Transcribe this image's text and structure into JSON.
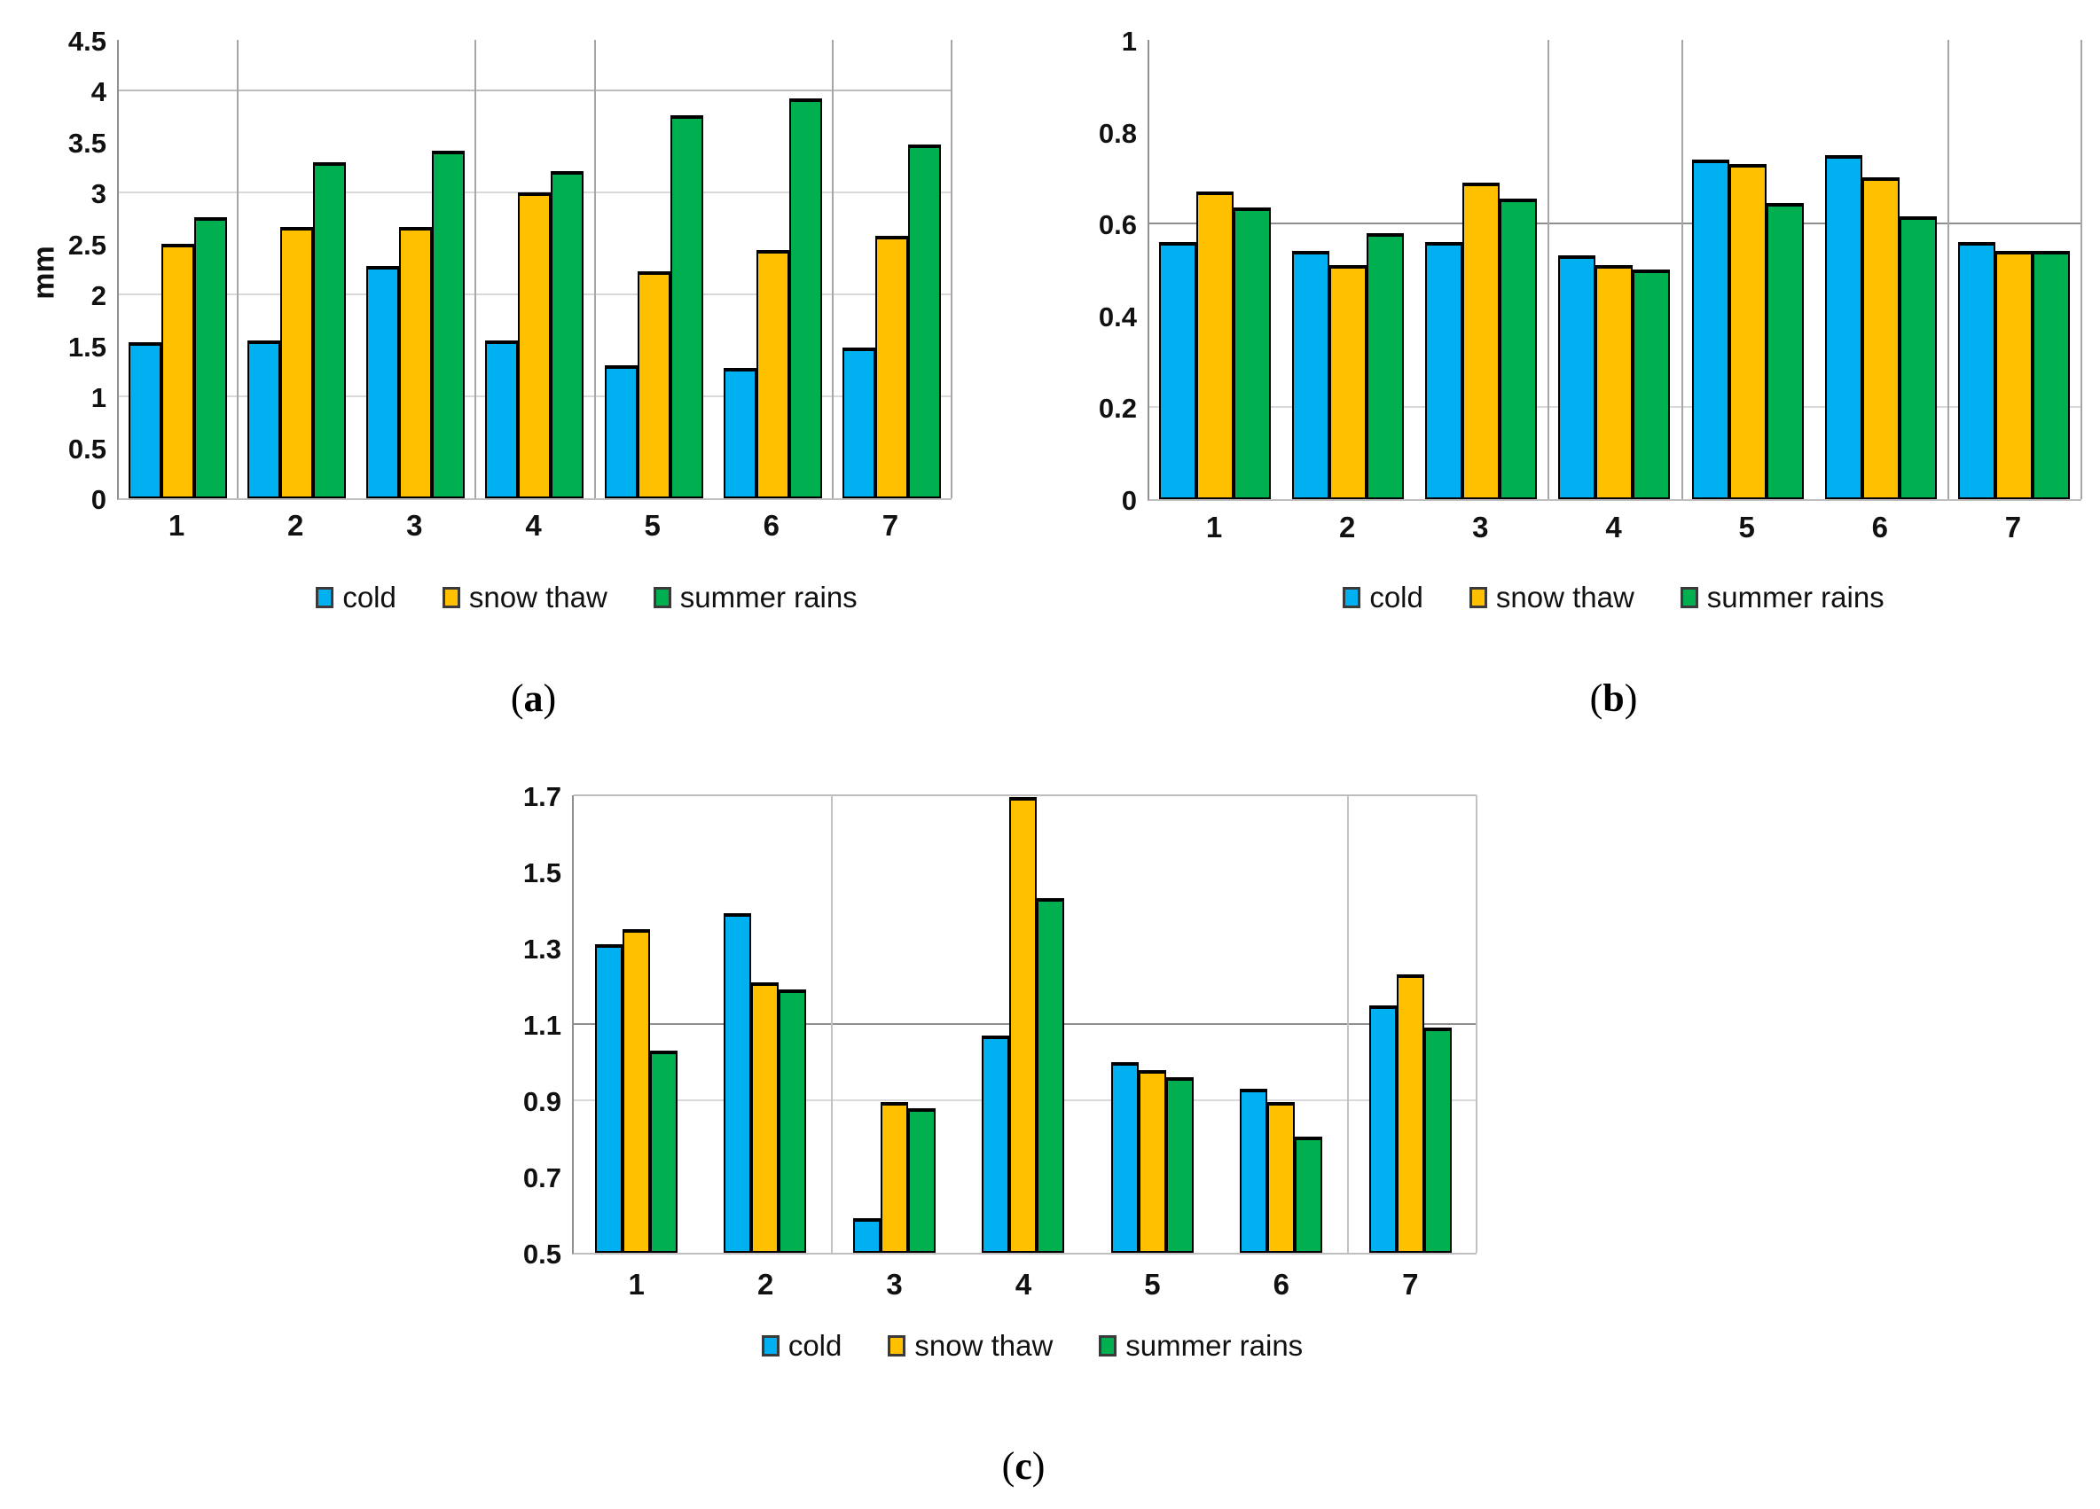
{
  "figure": {
    "series": [
      {
        "key": "cold",
        "label": "cold",
        "color": "#00B0F0"
      },
      {
        "key": "snow_thaw",
        "label": "snow thaw",
        "color": "#FFC000"
      },
      {
        "key": "summer_rains",
        "label": "summer rains",
        "color": "#00B050"
      }
    ]
  },
  "chart_data": [
    {
      "id": "a",
      "type": "bar",
      "caption_open": "(",
      "caption_letter": "a",
      "caption_close": ")",
      "ylabel": "mm",
      "categories": [
        "1",
        "2",
        "3",
        "4",
        "5",
        "6",
        "7"
      ],
      "ylim": [
        0,
        4.5
      ],
      "yticks": [
        {
          "label": "0",
          "value": 0
        },
        {
          "label": "0.5",
          "value": 0.5
        },
        {
          "label": "1",
          "value": 1
        },
        {
          "label": "1.5",
          "value": 1.5
        },
        {
          "label": "2",
          "value": 2
        },
        {
          "label": "2.5",
          "value": 2.5
        },
        {
          "label": "3",
          "value": 3
        },
        {
          "label": "3.5",
          "value": 3.5
        },
        {
          "label": "4",
          "value": 4
        },
        {
          "label": "4.5",
          "value": 4.5
        }
      ],
      "gridlines": [
        {
          "value": 1,
          "strength": "light"
        },
        {
          "value": 2,
          "strength": "light"
        },
        {
          "value": 3,
          "strength": "light"
        },
        {
          "value": 4,
          "strength": "medium"
        }
      ],
      "vseparators_after": [
        1,
        3,
        4,
        6,
        7
      ],
      "legend_position": "bottom",
      "series": [
        {
          "name": "cold",
          "values": [
            1.53,
            1.55,
            2.28,
            1.55,
            1.31,
            1.28,
            1.48
          ]
        },
        {
          "name": "snow thaw",
          "values": [
            2.5,
            2.66,
            2.66,
            3.0,
            2.23,
            2.44,
            2.58
          ]
        },
        {
          "name": "summer rains",
          "values": [
            2.76,
            3.3,
            3.41,
            3.21,
            3.76,
            3.93,
            3.47
          ]
        }
      ]
    },
    {
      "id": "b",
      "type": "bar",
      "caption_open": "(",
      "caption_letter": "b",
      "caption_close": ")",
      "ylabel": "",
      "categories": [
        "1",
        "2",
        "3",
        "4",
        "5",
        "6",
        "7"
      ],
      "ylim": [
        0,
        1
      ],
      "yticks": [
        {
          "label": "0",
          "value": 0
        },
        {
          "label": "0.2",
          "value": 0.2
        },
        {
          "label": "0.4",
          "value": 0.4
        },
        {
          "label": "0.6",
          "value": 0.6
        },
        {
          "label": "0.8",
          "value": 0.8
        },
        {
          "label": "1",
          "value": 1
        }
      ],
      "gridlines": [
        {
          "value": 0.2,
          "strength": "light"
        },
        {
          "value": 0.6,
          "strength": "dark"
        }
      ],
      "vseparators_after": [
        3,
        4,
        6,
        7
      ],
      "legend_position": "bottom",
      "series": [
        {
          "name": "cold",
          "values": [
            0.56,
            0.54,
            0.56,
            0.53,
            0.74,
            0.75,
            0.56
          ]
        },
        {
          "name": "snow thaw",
          "values": [
            0.67,
            0.51,
            0.69,
            0.51,
            0.73,
            0.7,
            0.54
          ]
        },
        {
          "name": "summer rains",
          "values": [
            0.635,
            0.58,
            0.655,
            0.5,
            0.645,
            0.615,
            0.54
          ]
        }
      ]
    },
    {
      "id": "c",
      "type": "bar",
      "caption_open": "(",
      "caption_letter": "c",
      "caption_close": ")",
      "ylabel": "",
      "categories": [
        "1",
        "2",
        "3",
        "4",
        "5",
        "6",
        "7"
      ],
      "ylim": [
        0.5,
        1.7
      ],
      "yticks": [
        {
          "label": "0.5",
          "value": 0.5
        },
        {
          "label": "0.7",
          "value": 0.7
        },
        {
          "label": "0.9",
          "value": 0.9
        },
        {
          "label": "1.1",
          "value": 1.1
        },
        {
          "label": "1.3",
          "value": 1.3
        },
        {
          "label": "1.5",
          "value": 1.5
        },
        {
          "label": "1.7",
          "value": 1.7
        }
      ],
      "gridlines": [
        {
          "value": 0.9,
          "strength": "light"
        },
        {
          "value": 1.1,
          "strength": "dark"
        },
        {
          "value": 1.7,
          "strength": "medium"
        }
      ],
      "vseparators_after": [
        2,
        6,
        7
      ],
      "legend_position": "bottom",
      "series": [
        {
          "name": "cold",
          "values": [
            1.31,
            1.39,
            0.59,
            1.07,
            1.0,
            0.93,
            1.15
          ]
        },
        {
          "name": "snow thaw",
          "values": [
            1.35,
            1.21,
            0.895,
            1.695,
            0.98,
            0.895,
            1.23
          ]
        },
        {
          "name": "summer rains",
          "values": [
            1.03,
            1.19,
            0.88,
            1.43,
            0.96,
            0.805,
            1.09
          ]
        }
      ]
    }
  ]
}
